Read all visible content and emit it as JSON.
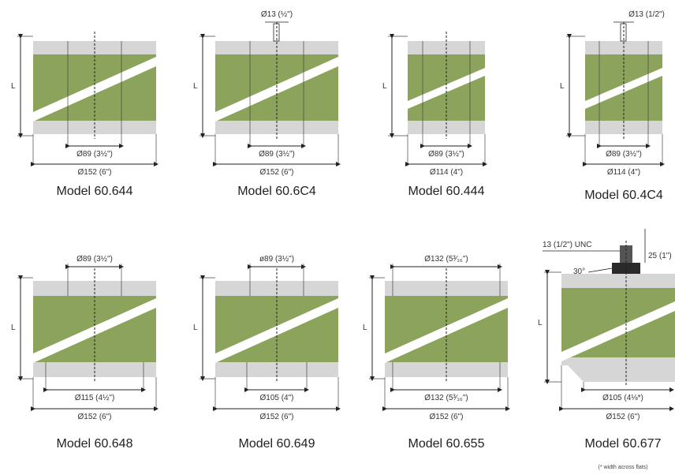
{
  "figure": {
    "footnote": "(* width across flats)"
  },
  "colors": {
    "green": "#8ca35c",
    "grey": "#d6d6d6",
    "line": "#222222"
  },
  "models": [
    {
      "name": "Model 60.644",
      "top_label": "",
      "inner_label": "Ø89 (3½\")",
      "outer_label": "Ø152 (6\")",
      "l_label": "L"
    },
    {
      "name": "Model 60.6C4",
      "top_label": "Ø13 (½\")",
      "inner_label": "Ø89 (3½\")",
      "outer_label": "Ø152 (6\")",
      "l_label": "L"
    },
    {
      "name": "Model 60.444",
      "top_label": "",
      "inner_label": "Ø89 (3½\")",
      "outer_label": "Ø114 (4\")",
      "l_label": "L"
    },
    {
      "name": "Model 60.4C4",
      "top_label": "Ø13 (1/2\")",
      "inner_label": "Ø89 (3½\")",
      "outer_label": "Ø114 (4\")",
      "l_label": "L"
    },
    {
      "name": "Model 60.648",
      "top_label": "Ø89 (3½\")",
      "inner_label": "Ø115 (4½\")",
      "outer_label": "Ø152 (6\")",
      "l_label": "L"
    },
    {
      "name": "Model 60.649",
      "top_label": "ø89 (3½\")",
      "inner_label": "Ø105 (4\")",
      "outer_label": "Ø152 (6\")",
      "l_label": "L"
    },
    {
      "name": "Model 60.655",
      "top_label": "Ø132 (5³⁄₁₆\")",
      "inner_label": "Ø132 (5³⁄₁₆\")",
      "outer_label": "Ø152 (6\")",
      "l_label": "L"
    },
    {
      "name": "Model 60.677",
      "top_label": "13 (1/2\") UNC",
      "side_label": "25 (1\")",
      "angle_label": "30°",
      "inner_label": "Ø105 (4⅛*)",
      "outer_label": "Ø152 (6\")",
      "l_label": "L"
    }
  ]
}
